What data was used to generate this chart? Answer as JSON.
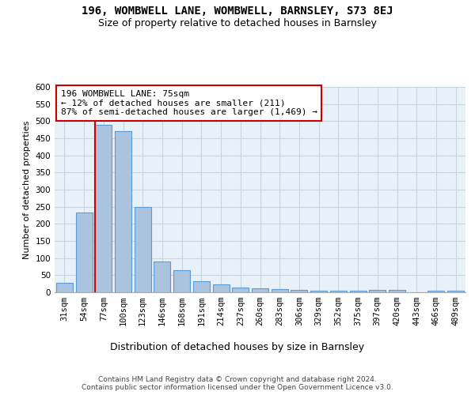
{
  "title1": "196, WOMBWELL LANE, WOMBWELL, BARNSLEY, S73 8EJ",
  "title2": "Size of property relative to detached houses in Barnsley",
  "xlabel": "Distribution of detached houses by size in Barnsley",
  "ylabel": "Number of detached properties",
  "categories": [
    "31sqm",
    "54sqm",
    "77sqm",
    "100sqm",
    "123sqm",
    "146sqm",
    "168sqm",
    "191sqm",
    "214sqm",
    "237sqm",
    "260sqm",
    "283sqm",
    "306sqm",
    "329sqm",
    "352sqm",
    "375sqm",
    "397sqm",
    "420sqm",
    "443sqm",
    "466sqm",
    "489sqm"
  ],
  "values": [
    27,
    233,
    490,
    470,
    250,
    90,
    65,
    33,
    23,
    14,
    12,
    10,
    8,
    5,
    5,
    5,
    7,
    7,
    0,
    5,
    5
  ],
  "bar_color": "#aac4e0",
  "bar_edgecolor": "#5b9bd5",
  "vline_idx": 2,
  "vline_color": "#cc0000",
  "annotation_text": "196 WOMBWELL LANE: 75sqm\n← 12% of detached houses are smaller (211)\n87% of semi-detached houses are larger (1,469) →",
  "annotation_box_color": "white",
  "annotation_box_edgecolor": "#cc0000",
  "ylim": [
    0,
    600
  ],
  "yticks": [
    0,
    50,
    100,
    150,
    200,
    250,
    300,
    350,
    400,
    450,
    500,
    550,
    600
  ],
  "grid_color": "#c8d4e0",
  "background_color": "#e8f0f8",
  "footer": "Contains HM Land Registry data © Crown copyright and database right 2024.\nContains public sector information licensed under the Open Government Licence v3.0.",
  "title1_fontsize": 10,
  "title2_fontsize": 9,
  "xlabel_fontsize": 9,
  "ylabel_fontsize": 8,
  "tick_fontsize": 7.5,
  "annotation_fontsize": 8,
  "footer_fontsize": 6.5
}
